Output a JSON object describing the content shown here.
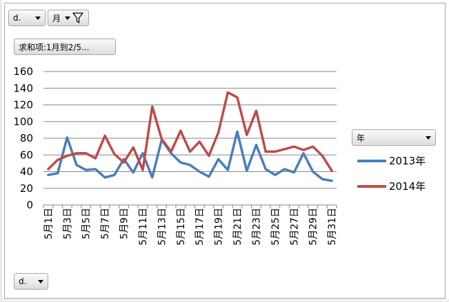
{
  "field_buttons": {
    "top_filter": "d.",
    "month_filter": "月",
    "value_field": "求和项:1月到2/5...",
    "axis_field": "d.",
    "legend_field": "年"
  },
  "icons": {
    "filter": "funnel-icon",
    "dropdown": "dropdown-arrow-icon"
  },
  "colors": {
    "series_2013": "#4a7ebb",
    "series_2014": "#be4b48",
    "gridline": "#868686"
  },
  "chart_data": {
    "type": "line",
    "title": "",
    "xlabel": "",
    "ylabel": "",
    "ylim": [
      0,
      160
    ],
    "yticks": [
      0,
      20,
      40,
      60,
      80,
      100,
      120,
      140,
      160
    ],
    "grid": true,
    "legend_position": "right",
    "x": [
      "5月1日",
      "5月2日",
      "5月3日",
      "5月4日",
      "5月5日",
      "5月6日",
      "5月7日",
      "5月8日",
      "5月9日",
      "5月10日",
      "5月11日",
      "5月12日",
      "5月13日",
      "5月14日",
      "5月15日",
      "5月16日",
      "5月17日",
      "5月18日",
      "5月19日",
      "5月20日",
      "5月21日",
      "5月22日",
      "5月23日",
      "5月24日",
      "5月25日",
      "5月26日",
      "5月27日",
      "5月28日",
      "5月29日",
      "5月30日",
      "5月31日"
    ],
    "xtick_labels": [
      "5月1日",
      "5月3日",
      "5月5日",
      "5月7日",
      "5月9日",
      "5月11日",
      "5月13日",
      "5月15日",
      "5月17日",
      "5月19日",
      "5月21日",
      "5月23日",
      "5月25日",
      "5月27日",
      "5月29日",
      "5月31日"
    ],
    "series": [
      {
        "name": "2013年",
        "values": [
          36,
          38,
          81,
          48,
          42,
          43,
          33,
          36,
          55,
          39,
          62,
          33,
          78,
          62,
          51,
          48,
          40,
          34,
          55,
          42,
          88,
          41,
          72,
          43,
          36,
          43,
          39,
          62,
          40,
          31,
          29
        ]
      },
      {
        "name": "2014年",
        "values": [
          43,
          54,
          59,
          62,
          62,
          56,
          83,
          61,
          51,
          69,
          42,
          118,
          79,
          64,
          89,
          64,
          76,
          59,
          87,
          135,
          129,
          84,
          113,
          64,
          64,
          67,
          70,
          66,
          70,
          59,
          41
        ]
      }
    ]
  }
}
